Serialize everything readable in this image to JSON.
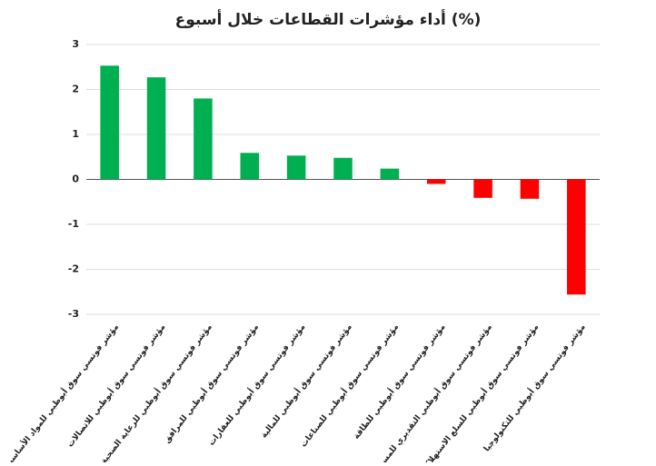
{
  "chart_data": {
    "type": "bar",
    "title": "أداء مؤشرات القطاعات خلال أسبوع (%)",
    "categories": [
      "مؤشر فوتسي سوق أبوظبي للمواد الأساسية",
      "مؤشر فوتسي سوق أبوظبي للاتصالات",
      "مؤشر فوتسي سوق أبوظبي للرعاية الصحية",
      "مؤشر فوتسي سوق أبوظبي للمرافق",
      "مؤشر فوتسي سوق أبوظبي للعقارات",
      "مؤشر فوتسي سوق أبوظبي للمالية",
      "مؤشر فوتسي سوق أبوظبي للصناعات",
      "مؤشر فوتسي سوق أبوظبي للطاقة",
      "مؤشر فوتسي سوق أبوظبي التقديري للمستهلك",
      "مؤشر فوتسي سوق أبوظبي للسلع الاستهلاكية",
      "مؤشر فوتسي سوق أبوظبي للتكنولوجيا"
    ],
    "values": [
      2.53,
      2.27,
      1.8,
      0.59,
      0.53,
      0.48,
      0.24,
      -0.1,
      -0.41,
      -0.43,
      -2.56
    ],
    "positive_color": "#00b050",
    "negative_color": "#ff0000",
    "ylim": [
      -3,
      3
    ],
    "yticks": [
      -3,
      -2,
      -1,
      0,
      1,
      2,
      3
    ],
    "grid": true
  }
}
